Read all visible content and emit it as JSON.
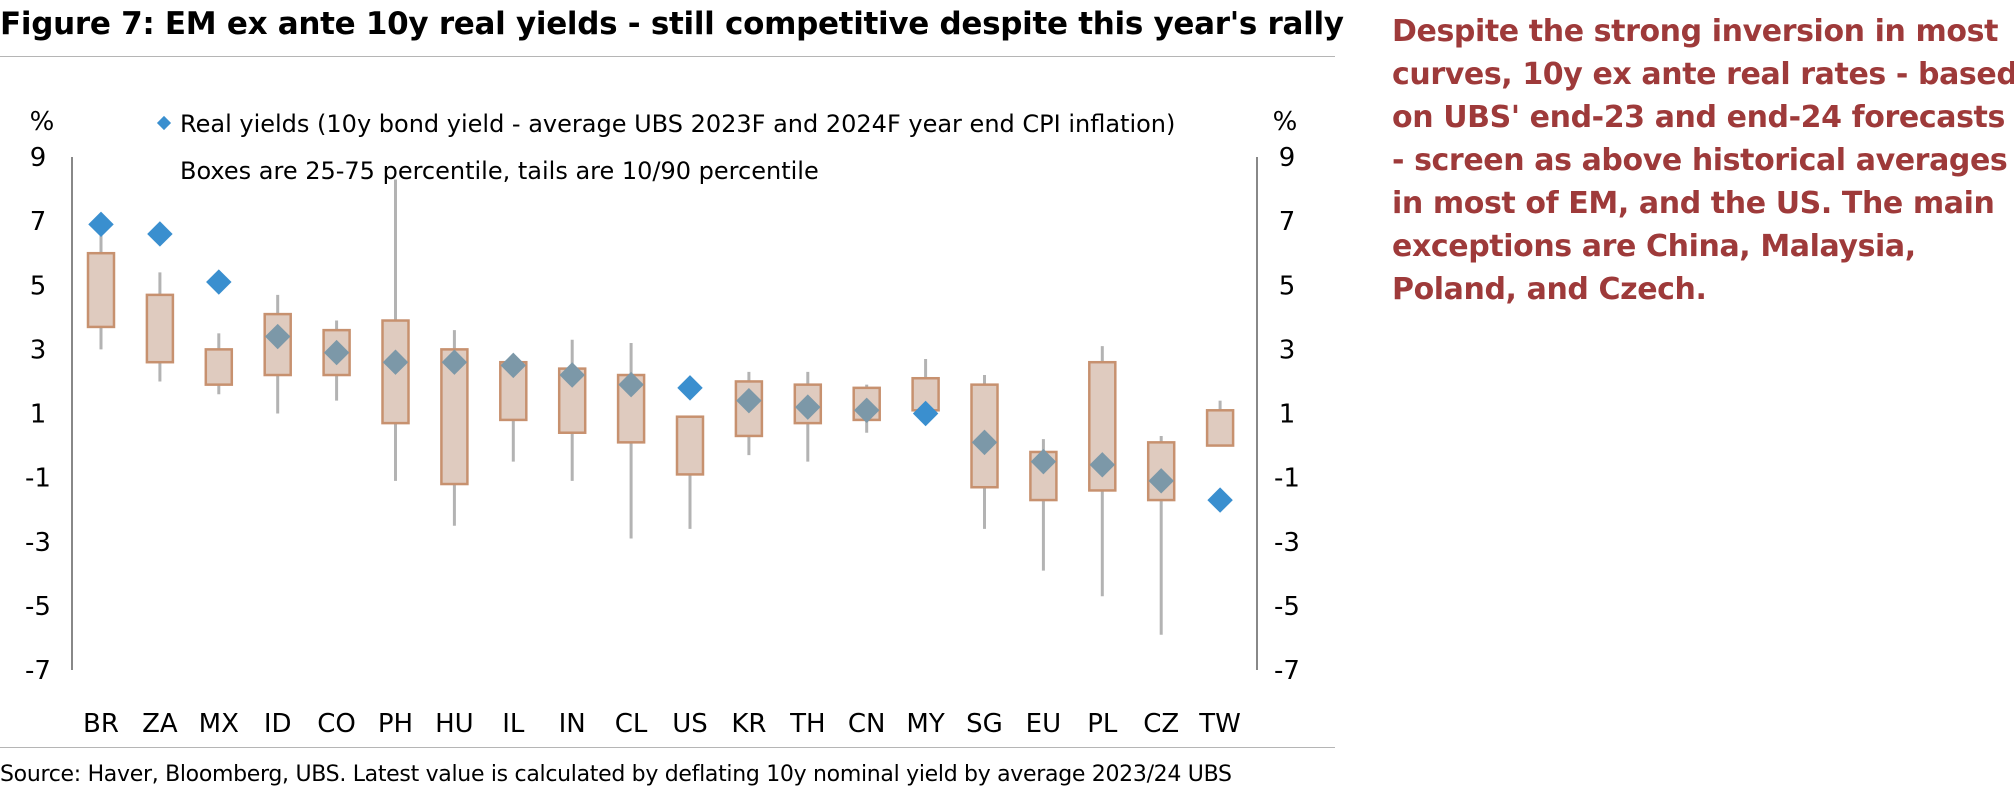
{
  "figure_title": "Figure 7: EM ex ante 10y real yields - still competitive despite this year's rally",
  "source_note": "Source: Haver, Bloomberg, UBS. Latest value is calculated by deflating 10y nominal yield by average 2023/24 UBS",
  "side_commentary": [
    "Despite the strong inversion in most",
    "curves, 10y ex ante real rates - based",
    "on UBS' end-23 and end-24 forecasts",
    "- screen as above historical averages",
    "in most of EM, and the US. The main",
    "exceptions are China, Malaysia,",
    "Poland, and Czech."
  ],
  "colors": {
    "box_fill": "#dfcbbf",
    "box_edge": "#c7916f",
    "whisker": "#b3b3b3",
    "marker": "#3a8fcf",
    "marker_inside_box": "#7c98a8",
    "commentary": "#9e3a3a"
  },
  "chart_data": {
    "type": "boxplot",
    "ylabel_left": "%",
    "ylabel_right": "%",
    "ylim": [
      -7,
      9
    ],
    "yticks": [
      9,
      7,
      5,
      3,
      1,
      -1,
      -3,
      -5,
      -7
    ],
    "legend_marker_label": "Real yields (10y bond yield - average UBS 2023F and 2024F year end CPI inflation)",
    "legend_note": "Boxes are 25-75 percentile, tails are 10/90 percentile",
    "legend_position": "top",
    "categories": [
      "BR",
      "ZA",
      "MX",
      "ID",
      "CO",
      "PH",
      "HU",
      "IL",
      "IN",
      "CL",
      "US",
      "KR",
      "TH",
      "CN",
      "MY",
      "SG",
      "EU",
      "PL",
      "CZ",
      "TW"
    ],
    "p10": [
      3.0,
      2.0,
      1.6,
      1.0,
      1.4,
      -1.1,
      -2.5,
      -0.5,
      -1.1,
      -2.9,
      -2.6,
      -0.3,
      -0.5,
      0.4,
      1.4,
      -2.6,
      -3.9,
      -4.7,
      -5.9,
      0.3
    ],
    "p25": [
      3.7,
      2.6,
      1.9,
      2.2,
      2.2,
      0.7,
      -1.2,
      0.8,
      0.4,
      0.1,
      -0.9,
      0.3,
      0.7,
      0.8,
      1.1,
      -1.3,
      -1.7,
      -1.4,
      -1.7,
      0.0
    ],
    "p75": [
      6.0,
      4.7,
      3.0,
      4.1,
      3.6,
      3.9,
      3.0,
      2.6,
      2.4,
      2.2,
      0.9,
      2.0,
      1.9,
      1.8,
      2.1,
      1.9,
      -0.2,
      2.6,
      0.1,
      1.1
    ],
    "p90": [
      6.6,
      5.4,
      3.5,
      4.7,
      3.9,
      8.3,
      3.6,
      2.6,
      3.3,
      3.2,
      0.9,
      2.3,
      2.3,
      1.9,
      2.7,
      2.2,
      0.2,
      3.1,
      0.3,
      1.4
    ],
    "latest": [
      6.9,
      6.6,
      5.1,
      3.4,
      2.9,
      2.6,
      2.6,
      2.5,
      2.2,
      1.9,
      1.8,
      1.4,
      1.2,
      1.1,
      1.0,
      0.1,
      -0.5,
      -0.6,
      -1.1,
      -1.7
    ]
  }
}
